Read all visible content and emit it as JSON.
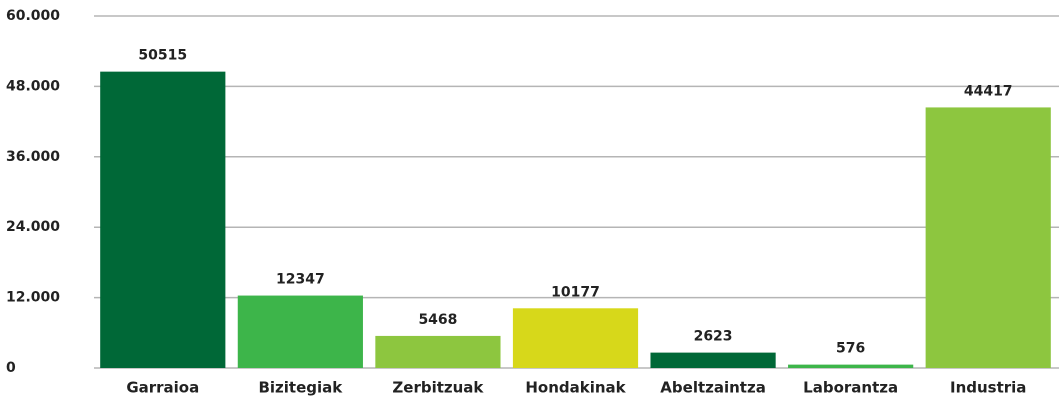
{
  "chart_data": {
    "type": "bar",
    "categories": [
      "Garraioa",
      "Bizitegiak",
      "Zerbitzuak",
      "Hondakinak",
      "Abeltzaintza",
      "Laborantza",
      "Industria"
    ],
    "values": [
      50515,
      12347,
      5468,
      10177,
      2623,
      576,
      44417
    ],
    "colors": [
      "#006837",
      "#3db54a",
      "#8dc63f",
      "#d7d81a",
      "#006837",
      "#3db54a",
      "#8dc63f"
    ],
    "ylim": [
      0,
      60000
    ],
    "yticks": [
      0,
      {
        "value": 12000,
        "label": "12.000"
      },
      {
        "value": 24000,
        "label": "24.000"
      },
      {
        "value": 36000,
        "label": "36.000"
      },
      {
        "value": 48000,
        "label": "48.000"
      },
      {
        "value": 60000,
        "label": "60.000"
      }
    ],
    "grid": true
  }
}
